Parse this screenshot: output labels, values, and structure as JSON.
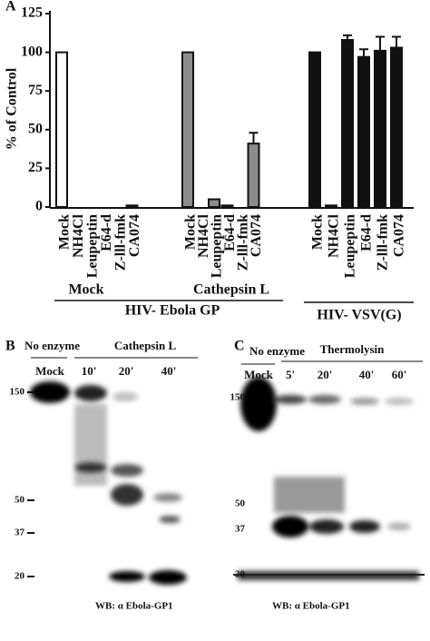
{
  "chart_data": {
    "type": "bar",
    "panel_label": "A",
    "y_label": "% of Control",
    "categories": [
      "Mock",
      "NH4Cl",
      "Leupeptin",
      "E64-d",
      "Z-lll-fmk",
      "CA074",
      "Mock",
      "NH4Cl",
      "Leupeptin",
      "E64-d",
      "Z-lll-fmk",
      "CA074",
      "Mock",
      "NH4Cl",
      "Leupeptin",
      "E64-d",
      "Z-lll-fmk",
      "CA074"
    ],
    "values": [
      100,
      0,
      0,
      0,
      0,
      1,
      100,
      0,
      5,
      1,
      0,
      41,
      100,
      1,
      108,
      97,
      101,
      103
    ],
    "errors": [
      null,
      null,
      null,
      null,
      null,
      null,
      null,
      null,
      null,
      null,
      null,
      7,
      null,
      null,
      3,
      5,
      9,
      7
    ],
    "colors": [
      "#ffffff",
      "#ffffff",
      "#ffffff",
      "#ffffff",
      "#ffffff",
      "#ffffff",
      "#8c8c8c",
      "#8c8c8c",
      "#8c8c8c",
      "#8c8c8c",
      "#8c8c8c",
      "#8c8c8c",
      "#111111",
      "#111111",
      "#111111",
      "#111111",
      "#111111",
      "#111111"
    ],
    "ylim": [
      0,
      125
    ],
    "yticks": [
      0,
      25,
      50,
      75,
      100,
      125
    ],
    "group_labels": {
      "mock": "Mock",
      "cathepsin": "Cathepsin L",
      "ebola": "HIV- Ebola GP",
      "vsv": "HIV- VSV(G)"
    }
  },
  "panel_b": {
    "label": "B",
    "no_enzyme": "No enzyme",
    "enzyme": "Cathepsin L",
    "lanes": [
      "Mock",
      "10'",
      "20'",
      "40'"
    ],
    "markers": [
      "150",
      "50",
      "37",
      "20"
    ],
    "wb": "WB: α Ebola-GP1"
  },
  "panel_c": {
    "label": "C",
    "no_enzyme": "No enzyme",
    "enzyme": "Thermolysin",
    "lanes": [
      "Mock",
      "5'",
      "20'",
      "40'",
      "60'"
    ],
    "markers": [
      "150",
      "50",
      "37",
      "20"
    ],
    "wb": "WB: α Ebola-GP1"
  }
}
